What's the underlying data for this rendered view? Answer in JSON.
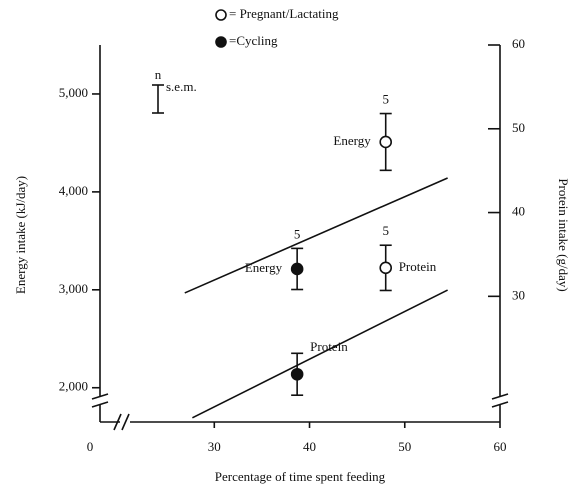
{
  "chart_data": {
    "type": "scatter",
    "x_label": "Percentage of time spent feeding",
    "y_label": "Energy intake (kJ/day)",
    "y2_label": "Protein intake (g/day)",
    "xlim": [
      18,
      60
    ],
    "xticks": [
      30,
      40,
      50,
      60
    ],
    "x_break_label": "0",
    "ylim": [
      1650,
      5500
    ],
    "yticks": [
      {
        "value": 2000,
        "label": "2,000"
      },
      {
        "value": 3000,
        "label": "3,000"
      },
      {
        "value": 4000,
        "label": "4,000"
      },
      {
        "value": 5000,
        "label": "5,000"
      }
    ],
    "y2lim": [
      15,
      60
    ],
    "y2ticks": [
      30,
      40,
      50,
      60
    ],
    "series": [
      {
        "name": "= Pregnant/Lactating",
        "marker": "open",
        "color": "#111111",
        "x": [
          48,
          48
        ],
        "values": [
          4510,
          33.4
        ],
        "axes": [
          "y",
          "y2"
        ],
        "errors": [
          290,
          2.7
        ],
        "point_labels": [
          "Energy",
          "Protein"
        ],
        "n": [
          5,
          5
        ]
      },
      {
        "name": "=Cycling",
        "marker": "filled",
        "color": "#111111",
        "x": [
          38.7,
          38.7
        ],
        "values": [
          3213,
          20.7
        ],
        "axes": [
          "y",
          "y2"
        ],
        "errors": [
          210,
          2.5
        ],
        "point_labels": [
          "Energy",
          "Protein"
        ],
        "n": [
          5,
          null
        ]
      }
    ],
    "lines": [
      {
        "axis": "y",
        "x": [
          26.9,
          54.5
        ],
        "values": [
          2968,
          4142
        ]
      },
      {
        "axis": "y2",
        "x": [
          27.7,
          54.5
        ],
        "values": [
          15.5,
          30.75
        ]
      }
    ],
    "key": {
      "n_label": "n",
      "label": "s.e.m."
    }
  }
}
